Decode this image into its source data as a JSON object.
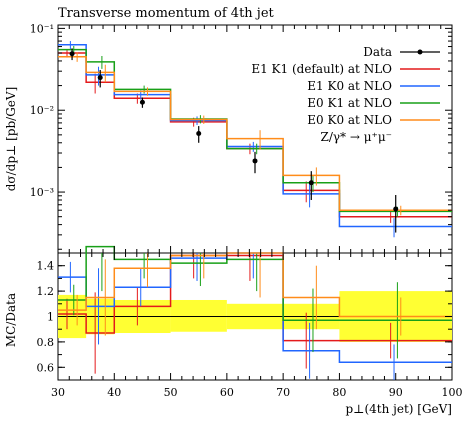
{
  "chart_data": {
    "type": "line",
    "title": "Transverse momentum of 4th jet",
    "xlabel": "p⊥(4th jet) [GeV]",
    "bin_edges": [
      30,
      35,
      40,
      50,
      60,
      70,
      80,
      100
    ],
    "main": {
      "ylabel": "dσ/dp⊥ [pb/GeV]",
      "yscale": "log",
      "ylim": [
        0.00018,
        0.11
      ],
      "ytick_labels": [
        "10⁻³",
        "10⁻²",
        "10⁻¹"
      ],
      "data": {
        "name": "Data",
        "x": [
          32.5,
          37.5,
          45,
          55,
          65,
          75,
          90
        ],
        "y": [
          0.049,
          0.025,
          0.0125,
          0.0052,
          0.0024,
          0.0013,
          0.00062
        ],
        "yerr_lo": [
          0.008,
          0.006,
          0.0018,
          0.0012,
          0.0007,
          0.0005,
          0.0003
        ],
        "yerr_hi": [
          0.008,
          0.006,
          0.0018,
          0.0012,
          0.0007,
          0.0005,
          0.0003
        ]
      },
      "series": [
        {
          "name": "E1 K1 (default) at NLO",
          "color": "#e41a1c",
          "values": [
            0.05,
            0.022,
            0.014,
            0.0072,
            0.0034,
            0.00105,
            0.0005
          ]
        },
        {
          "name": "E1 K0 at NLO",
          "color": "#2166ff",
          "values": [
            0.063,
            0.027,
            0.0155,
            0.0075,
            0.0036,
            0.00095,
            0.00038
          ]
        },
        {
          "name": "E0 K1 at NLO",
          "color": "#18a018",
          "values": [
            0.055,
            0.039,
            0.018,
            0.0078,
            0.0034,
            0.0013,
            0.00058
          ]
        },
        {
          "name": "E0 K0 at NLO",
          "color": "#ff8c1a",
          "values": [
            0.045,
            0.029,
            0.017,
            0.0077,
            0.0045,
            0.0016,
            0.0006
          ]
        }
      ],
      "series_errors": [
        [
          0.006,
          0.006,
          0.002,
          0.0009,
          0.0005,
          0.0003,
          8e-05
        ],
        [
          0.007,
          0.007,
          0.002,
          0.0009,
          0.0005,
          0.0003,
          0.0001
        ],
        [
          0.006,
          0.007,
          0.002,
          0.0009,
          0.0005,
          0.0003,
          8e-05
        ],
        [
          0.006,
          0.007,
          0.002,
          0.0009,
          0.0012,
          0.0004,
          8e-05
        ]
      ]
    },
    "ratio": {
      "ylabel": "MC/Data",
      "ylim": [
        0.5,
        1.5
      ],
      "ytick_labels": [
        "0.6",
        "0.8",
        "1",
        "1.2",
        "1.4"
      ],
      "ytick_values": [
        0.6,
        0.8,
        1.0,
        1.2,
        1.4
      ],
      "data_band_lo": [
        0.83,
        0.86,
        0.87,
        0.88,
        0.9,
        0.9,
        0.8
      ],
      "data_band_hi": [
        1.17,
        1.14,
        1.13,
        1.13,
        1.1,
        1.1,
        1.2
      ],
      "series_values": [
        [
          1.02,
          0.87,
          1.08,
          1.48,
          1.48,
          0.81,
          0.81
        ],
        [
          1.31,
          1.08,
          1.23,
          1.46,
          1.5,
          0.73,
          0.64
        ],
        [
          1.13,
          1.55,
          1.45,
          1.42,
          1.45,
          0.97,
          0.97
        ],
        [
          1.05,
          1.15,
          1.38,
          1.48,
          1.5,
          1.15,
          1.0
        ]
      ],
      "series_err": [
        [
          0.12,
          0.32,
          0.15,
          0.18,
          0.2,
          0.22,
          0.14
        ],
        [
          0.12,
          0.3,
          0.15,
          0.18,
          0.2,
          0.22,
          0.14
        ],
        [
          0.12,
          0.35,
          0.15,
          0.18,
          0.25,
          0.25,
          0.3
        ],
        [
          0.12,
          0.3,
          0.15,
          0.18,
          0.35,
          0.25,
          0.15
        ]
      ]
    },
    "xticks": [
      30,
      40,
      50,
      60,
      70,
      80,
      90,
      100
    ],
    "legend": {
      "entries": [
        "Data",
        "E1 K1 (default) at NLO",
        "E1 K0 at NLO",
        "E0 K1 at NLO",
        "E0 K0 at NLO"
      ],
      "process": "Z/γ* → μ⁺μ⁻",
      "placement": "top-right"
    }
  }
}
